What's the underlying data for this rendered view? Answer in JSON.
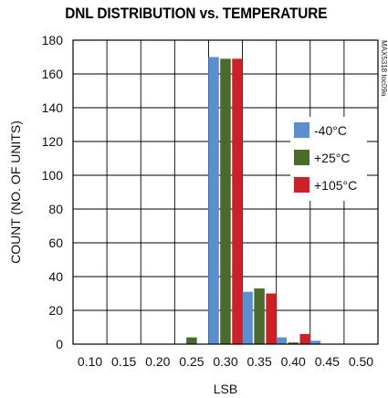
{
  "chart_data": {
    "type": "bar",
    "title": "DNL DISTRIBUTION vs. TEMPERATURE",
    "xlabel": "LSB",
    "ylabel": "COUNT (NO. OF UNITS)",
    "categories": [
      "0.10",
      "0.15",
      "0.20",
      "0.25",
      "0.30",
      "0.35",
      "0.40",
      "0.45",
      "0.50"
    ],
    "yticks": [
      0,
      20,
      40,
      60,
      80,
      100,
      120,
      140,
      160,
      180
    ],
    "ylim": [
      0,
      180
    ],
    "grid": true,
    "legend_position": "right",
    "series": [
      {
        "name": "-40°C",
        "color": "#5b8fd0",
        "values": [
          0,
          0,
          0,
          0,
          170,
          31,
          4,
          2,
          0
        ]
      },
      {
        "name": "+25°C",
        "color": "#4a6a2e",
        "values": [
          0,
          0,
          0,
          4,
          169,
          33,
          1,
          0,
          0
        ]
      },
      {
        "name": "+105°C",
        "color": "#cc2129",
        "values": [
          0,
          0,
          0,
          0,
          169,
          30,
          6,
          0,
          0
        ]
      }
    ],
    "side_code": "MAX5318 toc09a"
  }
}
